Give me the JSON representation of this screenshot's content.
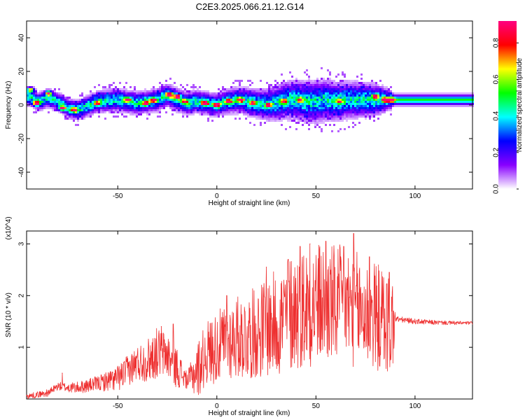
{
  "title": "C2E3.2025.066.21.12.G14",
  "chart_data": [
    {
      "type": "heatmap",
      "xlabel": "Height of straight line (km)",
      "ylabel": "Frequency (Hz)",
      "xlim": [
        -96,
        129
      ],
      "ylim": [
        -50,
        50
      ],
      "xticks": [
        -50,
        0,
        50,
        100
      ],
      "yticks": [
        -40,
        -20,
        0,
        20,
        40
      ],
      "colorbar": {
        "label": "Normalized spectral amplitude",
        "range": [
          0,
          0.92
        ],
        "ticks": [
          0.0,
          0.2,
          0.4,
          0.6,
          0.8
        ],
        "tick_labels": [
          "0.0",
          "0.2",
          "0.4",
          "0.6",
          "0.8"
        ],
        "colormap": [
          "#ffffff",
          "#8800ff",
          "#0000ff",
          "#00ffff",
          "#00ff00",
          "#ffff00",
          "#ff0000",
          "#ff0080"
        ]
      },
      "ridge_center_hz": [
        [
          -95,
          5
        ],
        [
          -90,
          2
        ],
        [
          -85,
          4
        ],
        [
          -80,
          2
        ],
        [
          -75,
          -2
        ],
        [
          -70,
          -3
        ],
        [
          -60,
          2
        ],
        [
          -50,
          3
        ],
        [
          -40,
          1
        ],
        [
          -30,
          3
        ],
        [
          -25,
          6
        ],
        [
          -20,
          3
        ],
        [
          -15,
          1
        ],
        [
          -10,
          2
        ],
        [
          -5,
          1
        ],
        [
          0,
          0
        ],
        [
          5,
          2
        ],
        [
          10,
          3
        ],
        [
          15,
          2
        ],
        [
          20,
          1
        ],
        [
          25,
          0
        ],
        [
          30,
          1
        ],
        [
          35,
          3
        ],
        [
          40,
          3
        ],
        [
          45,
          2
        ],
        [
          50,
          2
        ],
        [
          55,
          3
        ],
        [
          60,
          2
        ],
        [
          65,
          3
        ],
        [
          70,
          3
        ],
        [
          75,
          3
        ],
        [
          80,
          3
        ],
        [
          85,
          3
        ],
        [
          90,
          3
        ],
        [
          95,
          3
        ],
        [
          100,
          3
        ],
        [
          110,
          3
        ],
        [
          120,
          3
        ],
        [
          129,
          3
        ]
      ],
      "ridge_halfwidth_hz": [
        [
          -95,
          4
        ],
        [
          -80,
          4
        ],
        [
          -50,
          5
        ],
        [
          -20,
          5
        ],
        [
          0,
          5
        ],
        [
          20,
          6
        ],
        [
          35,
          8
        ],
        [
          50,
          9
        ],
        [
          65,
          8
        ],
        [
          80,
          7
        ],
        [
          86,
          5
        ],
        [
          90,
          3
        ],
        [
          129,
          3
        ]
      ],
      "hot_spots": [
        {
          "x": -94,
          "y": 9,
          "v": 0.7
        },
        {
          "x": -91,
          "y": 1,
          "v": 0.85
        },
        {
          "x": -85,
          "y": 7,
          "v": 0.7
        },
        {
          "x": -78,
          "y": -2,
          "v": 0.75
        },
        {
          "x": -72,
          "y": -3,
          "v": 0.8
        },
        {
          "x": -60,
          "y": 1,
          "v": 0.6
        },
        {
          "x": -45,
          "y": 3,
          "v": 0.65
        },
        {
          "x": -36,
          "y": 1,
          "v": 0.7
        },
        {
          "x": -32,
          "y": 3,
          "v": 0.65
        },
        {
          "x": -24,
          "y": 6,
          "v": 0.85
        },
        {
          "x": -20,
          "y": 5,
          "v": 0.85
        },
        {
          "x": -16,
          "y": 2,
          "v": 0.7
        },
        {
          "x": -6,
          "y": 1,
          "v": 0.9
        },
        {
          "x": 0,
          "y": 0,
          "v": 0.85
        },
        {
          "x": 6,
          "y": 2,
          "v": 0.75
        },
        {
          "x": 12,
          "y": 3,
          "v": 0.7
        },
        {
          "x": 18,
          "y": 1,
          "v": 0.7
        },
        {
          "x": 26,
          "y": 0,
          "v": 0.65
        },
        {
          "x": 34,
          "y": 2,
          "v": 0.65
        },
        {
          "x": 42,
          "y": 3,
          "v": 0.6
        },
        {
          "x": 62,
          "y": 2,
          "v": 0.6
        },
        {
          "x": 80,
          "y": 5,
          "v": 0.7
        },
        {
          "x": 85,
          "y": 3,
          "v": 0.92
        },
        {
          "x": 88,
          "y": 3,
          "v": 0.9
        }
      ]
    },
    {
      "type": "line",
      "xlabel": "Height of straight line (km)",
      "ylabel": "SNR (10 * v/v)",
      "y_multiplier": "(x10^4)",
      "xlim": [
        -96,
        129
      ],
      "ylim": [
        0,
        3.25
      ],
      "xticks": [
        -50,
        0,
        50,
        100
      ],
      "yticks": [
        1,
        2,
        3
      ],
      "series": [
        {
          "color": "#ee3030",
          "mean_envelope": [
            [
              -96,
              0.05
            ],
            [
              -85,
              0.12
            ],
            [
              -80,
              0.25
            ],
            [
              -75,
              0.22
            ],
            [
              -70,
              0.22
            ],
            [
              -60,
              0.3
            ],
            [
              -50,
              0.4
            ],
            [
              -45,
              0.55
            ],
            [
              -40,
              0.7
            ],
            [
              -35,
              0.75
            ],
            [
              -30,
              0.9
            ],
            [
              -25,
              0.85
            ],
            [
              -20,
              0.6
            ],
            [
              -15,
              0.35
            ],
            [
              -10,
              0.55
            ],
            [
              -5,
              0.9
            ],
            [
              0,
              1.0
            ],
            [
              5,
              1.1
            ],
            [
              10,
              1.2
            ],
            [
              15,
              1.2
            ],
            [
              20,
              1.3
            ],
            [
              25,
              1.4
            ],
            [
              30,
              1.45
            ],
            [
              35,
              1.6
            ],
            [
              40,
              1.75
            ],
            [
              45,
              1.8
            ],
            [
              50,
              1.85
            ],
            [
              55,
              1.85
            ],
            [
              60,
              1.8
            ],
            [
              65,
              1.8
            ],
            [
              70,
              1.75
            ],
            [
              75,
              1.65
            ],
            [
              80,
              1.6
            ],
            [
              85,
              1.5
            ],
            [
              89,
              1.45
            ],
            [
              90,
              1.55
            ],
            [
              100,
              1.5
            ],
            [
              110,
              1.48
            ],
            [
              120,
              1.47
            ],
            [
              129,
              1.47
            ]
          ],
          "oscillation_amplitude": [
            [
              -96,
              0.05
            ],
            [
              -80,
              0.08
            ],
            [
              -60,
              0.15
            ],
            [
              -40,
              0.35
            ],
            [
              -30,
              0.5
            ],
            [
              -20,
              0.4
            ],
            [
              -15,
              0.15
            ],
            [
              -10,
              0.55
            ],
            [
              0,
              0.7
            ],
            [
              20,
              0.9
            ],
            [
              40,
              1.2
            ],
            [
              60,
              1.2
            ],
            [
              75,
              1.1
            ],
            [
              89,
              1.0
            ],
            [
              90,
              0.06
            ],
            [
              129,
              0.03
            ]
          ],
          "peaks": [
            {
              "x": -78,
              "y": 0.5
            },
            {
              "x": -28,
              "y": 1.4
            },
            {
              "x": -22,
              "y": 1.45
            },
            {
              "x": 5,
              "y": 2.0
            },
            {
              "x": 25,
              "y": 2.55
            },
            {
              "x": 36,
              "y": 2.7
            },
            {
              "x": 42,
              "y": 2.95
            },
            {
              "x": 47,
              "y": 3.0
            },
            {
              "x": 55,
              "y": 3.05
            },
            {
              "x": 64,
              "y": 2.95
            },
            {
              "x": 69,
              "y": 3.2
            },
            {
              "x": 77,
              "y": 2.75
            },
            {
              "x": 87,
              "y": 2.45
            }
          ]
        }
      ]
    }
  ]
}
